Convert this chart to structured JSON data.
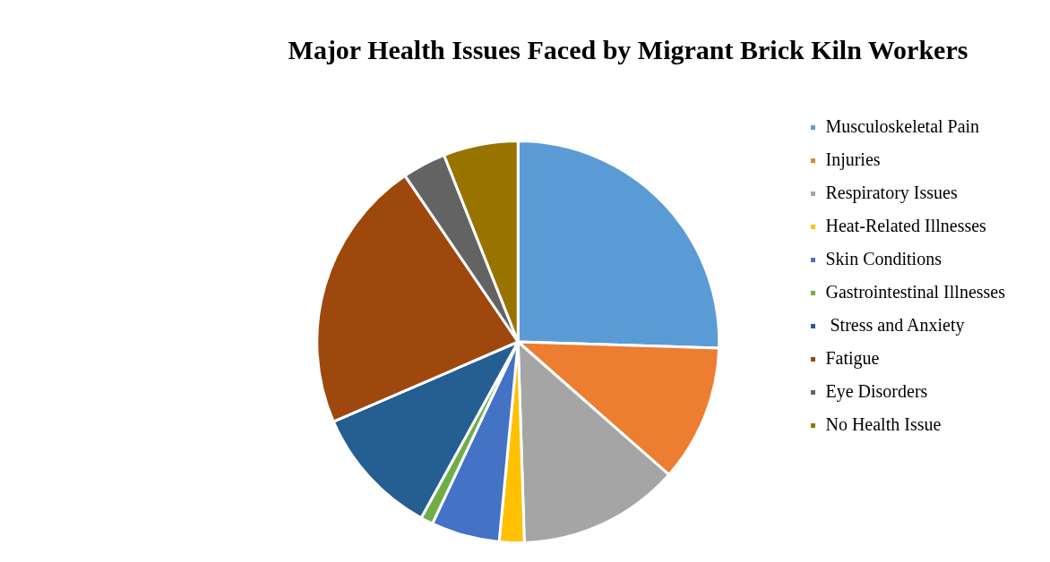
{
  "chart_data": {
    "type": "pie",
    "title": "Major Health Issues Faced by Migrant Brick Kiln Workers",
    "categories": [
      "Musculoskeletal Pain",
      "Injuries",
      "Respiratory Issues",
      "Heat-Related Illnesses",
      "Skin Conditions",
      "Gastrointestinal Illnesses",
      " Stress and Anxiety",
      "Fatigue",
      "Eye Disorders",
      "No Health Issue"
    ],
    "values": [
      25.5,
      11,
      13,
      2,
      5.5,
      1,
      10.5,
      22,
      3.5,
      6
    ],
    "colors": [
      "#5b9bd5",
      "#ed7d31",
      "#a5a5a5",
      "#ffc000",
      "#4472c4",
      "#70ad47",
      "#255e91",
      "#9e480e",
      "#636363",
      "#997300"
    ],
    "legend": "right"
  }
}
